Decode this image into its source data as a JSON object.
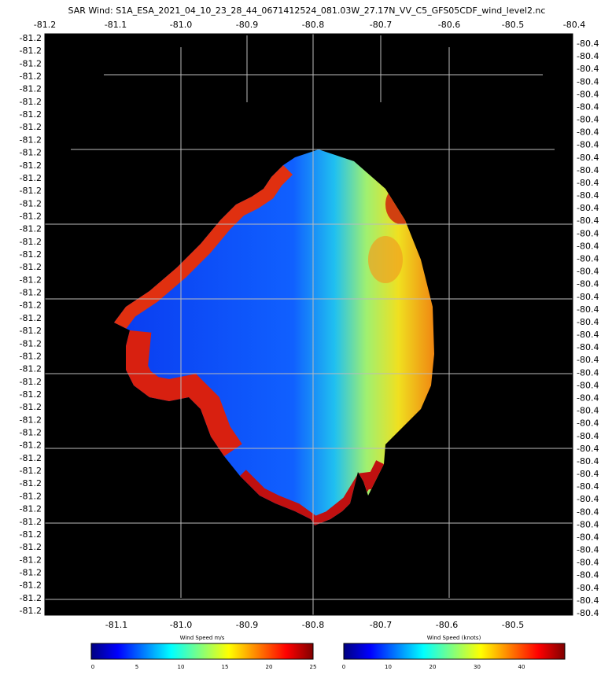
{
  "title": "SAR Wind: S1A_ESA_2021_04_10_23_28_44_0671412524_081.03W_27.17N_VV_C5_GFS05CDF_wind_level2.nc",
  "top_axis": [
    "-81.2",
    "-81.1",
    "-81.0",
    "-80.9",
    "-80.8",
    "-80.7",
    "-80.6",
    "-80.5",
    "-80.4"
  ],
  "bottom_axis": [
    "-81.1",
    "-81.0",
    "-80.9",
    "-80.8",
    "-80.7",
    "-80.6",
    "-80.5"
  ],
  "left_axis": [
    "-81.2",
    "-81.2",
    "-81.2",
    "-81.2",
    "-81.2",
    "-81.2",
    "-81.2",
    "-81.2",
    "-81.2",
    "-81.2",
    "-81.2",
    "-81.2",
    "-81.2",
    "-81.2",
    "-81.2",
    "-81.2",
    "-81.2",
    "-81.2",
    "-81.2",
    "-81.2",
    "-81.2",
    "-81.2",
    "-81.2",
    "-81.2",
    "-81.2",
    "-81.2",
    "-81.2",
    "-81.2",
    "-81.2",
    "-81.2",
    "-81.2",
    "-81.2",
    "-81.2",
    "-81.2",
    "-81.2",
    "-81.2",
    "-81.2",
    "-81.2",
    "-81.2",
    "-81.2",
    "-81.2",
    "-81.2",
    "-81.2",
    "-81.2",
    "-81.2",
    "-81.2"
  ],
  "right_axis": [
    "-80.4",
    "-80.4",
    "-80.4",
    "-80.4",
    "-80.4",
    "-80.4",
    "-80.4",
    "-80.4",
    "-80.4",
    "-80.4",
    "-80.4",
    "-80.4",
    "-80.4",
    "-80.4",
    "-80.4",
    "-80.4",
    "-80.4",
    "-80.4",
    "-80.4",
    "-80.4",
    "-80.4",
    "-80.4",
    "-80.4",
    "-80.4",
    "-80.4",
    "-80.4",
    "-80.4",
    "-80.4",
    "-80.4",
    "-80.4",
    "-80.4",
    "-80.4",
    "-80.4",
    "-80.4",
    "-80.4",
    "-80.4",
    "-80.4",
    "-80.4",
    "-80.4",
    "-80.4",
    "-80.4",
    "-80.4",
    "-80.4",
    "-80.4",
    "-80.4",
    "-80.4"
  ],
  "colorbar_ms": {
    "label": "Wind Speed m/s",
    "ticks": [
      "0",
      "5",
      "10",
      "15",
      "20",
      "25"
    ]
  },
  "colorbar_knots": {
    "label": "Wind Speed (knots)",
    "ticks": [
      "0",
      "10",
      "20",
      "30",
      "40"
    ]
  }
}
